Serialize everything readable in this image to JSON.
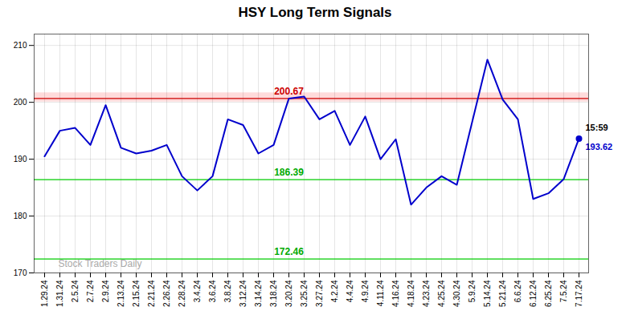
{
  "chart_data": {
    "type": "line",
    "title": "HSY Long Term Signals",
    "categories": [
      "1.29.24",
      "1.31.24",
      "2.5.24",
      "2.7.24",
      "2.9.24",
      "2.13.24",
      "2.15.24",
      "2.21.24",
      "2.26.24",
      "2.28.24",
      "3.4.24",
      "3.6.24",
      "3.8.24",
      "3.12.24",
      "3.14.24",
      "3.18.24",
      "3.20.24",
      "3.25.24",
      "3.27.24",
      "4.2.24",
      "4.4.24",
      "4.9.24",
      "4.11.24",
      "4.16.24",
      "4.18.24",
      "4.23.24",
      "4.25.24",
      "4.30.24",
      "5.9.24",
      "5.14.24",
      "5.21.24",
      "6.6.24",
      "6.12.24",
      "6.25.24",
      "7.5.24",
      "7.17.24"
    ],
    "values": [
      190.5,
      195.0,
      195.5,
      192.5,
      199.5,
      192.0,
      191.0,
      191.5,
      192.5,
      187.0,
      184.5,
      187.0,
      197.0,
      196.0,
      191.0,
      192.5,
      200.67,
      201.0,
      197.0,
      198.5,
      192.5,
      197.5,
      190.0,
      193.5,
      182.0,
      185.0,
      187.0,
      185.5,
      196.5,
      207.5,
      200.5,
      197.0,
      183.0,
      184.0,
      186.5,
      193.62
    ],
    "color": "#0000cc",
    "ylim": [
      170,
      212
    ],
    "yticks": [
      170,
      180,
      190,
      200,
      210
    ],
    "grid": true,
    "bands": [
      {
        "from": 200.07,
        "to": 201.67,
        "color": "#ffcccc"
      }
    ],
    "levels": [
      {
        "value": 200.67,
        "label": "200.67",
        "color": "#cc0000",
        "label_color": "#cc0000",
        "label_at": "3.20.24"
      },
      {
        "value": 186.39,
        "label": "186.39",
        "color": "#00cc00",
        "label_color": "#00aa00",
        "label_at": "3.20.24"
      },
      {
        "value": 172.46,
        "label": "172.46",
        "color": "#00cc00",
        "label_color": "#00aa00",
        "label_at": "3.20.24"
      }
    ],
    "last_point": {
      "time": "15:59",
      "time_color": "#000000",
      "price": "193.62",
      "price_color": "#0000cc"
    },
    "watermark": {
      "text": "Stock Traders Daily",
      "color": "#aaaaaa"
    }
  }
}
